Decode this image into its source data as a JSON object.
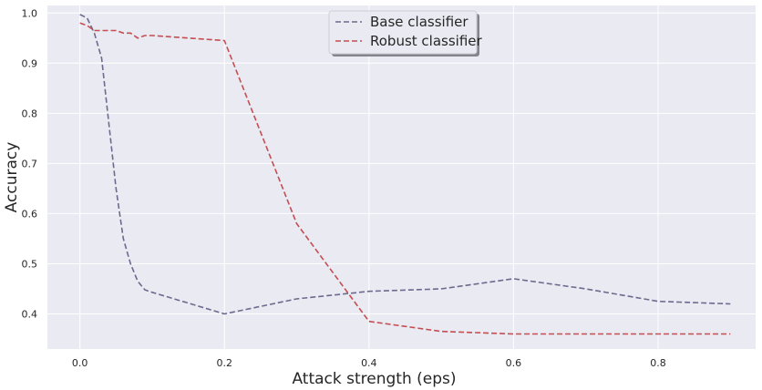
{
  "chart_data": {
    "type": "line",
    "xlabel": "Attack strength (eps)",
    "ylabel": "Accuracy",
    "xlim": [
      -0.045,
      0.935
    ],
    "ylim": [
      0.33,
      1.015
    ],
    "xticks": [
      0.0,
      0.2,
      0.4,
      0.6,
      0.8
    ],
    "xtick_labels": [
      "0.0",
      "0.2",
      "0.4",
      "0.6",
      "0.8"
    ],
    "yticks": [
      0.4,
      0.5,
      0.6,
      0.7,
      0.8,
      0.9,
      1.0
    ],
    "ytick_labels": [
      "0.4",
      "0.5",
      "0.6",
      "0.7",
      "0.8",
      "0.9",
      "1.0"
    ],
    "grid": true,
    "legend_position": "top-center",
    "background_color": "#eaeaf2",
    "grid_color": "#ffffff",
    "series": [
      {
        "name": "Base classifier",
        "color": "#6c6a8e",
        "dash": "dashed",
        "x": [
          0.0,
          0.01,
          0.02,
          0.03,
          0.04,
          0.05,
          0.06,
          0.07,
          0.08,
          0.09,
          0.1,
          0.2,
          0.3,
          0.4,
          0.5,
          0.6,
          0.7,
          0.8,
          0.9
        ],
        "y": [
          0.997,
          0.99,
          0.96,
          0.91,
          0.78,
          0.65,
          0.55,
          0.5,
          0.465,
          0.448,
          0.443,
          0.4,
          0.43,
          0.445,
          0.45,
          0.47,
          0.45,
          0.425,
          0.42
        ]
      },
      {
        "name": "Robust classifier",
        "color": "#c44e52",
        "dash": "dashed",
        "x": [
          0.0,
          0.01,
          0.02,
          0.03,
          0.04,
          0.05,
          0.06,
          0.07,
          0.08,
          0.09,
          0.1,
          0.2,
          0.3,
          0.4,
          0.5,
          0.6,
          0.7,
          0.8,
          0.9
        ],
        "y": [
          0.98,
          0.975,
          0.965,
          0.965,
          0.965,
          0.965,
          0.96,
          0.96,
          0.95,
          0.955,
          0.955,
          0.945,
          0.58,
          0.385,
          0.365,
          0.36,
          0.36,
          0.36,
          0.36
        ]
      }
    ]
  }
}
